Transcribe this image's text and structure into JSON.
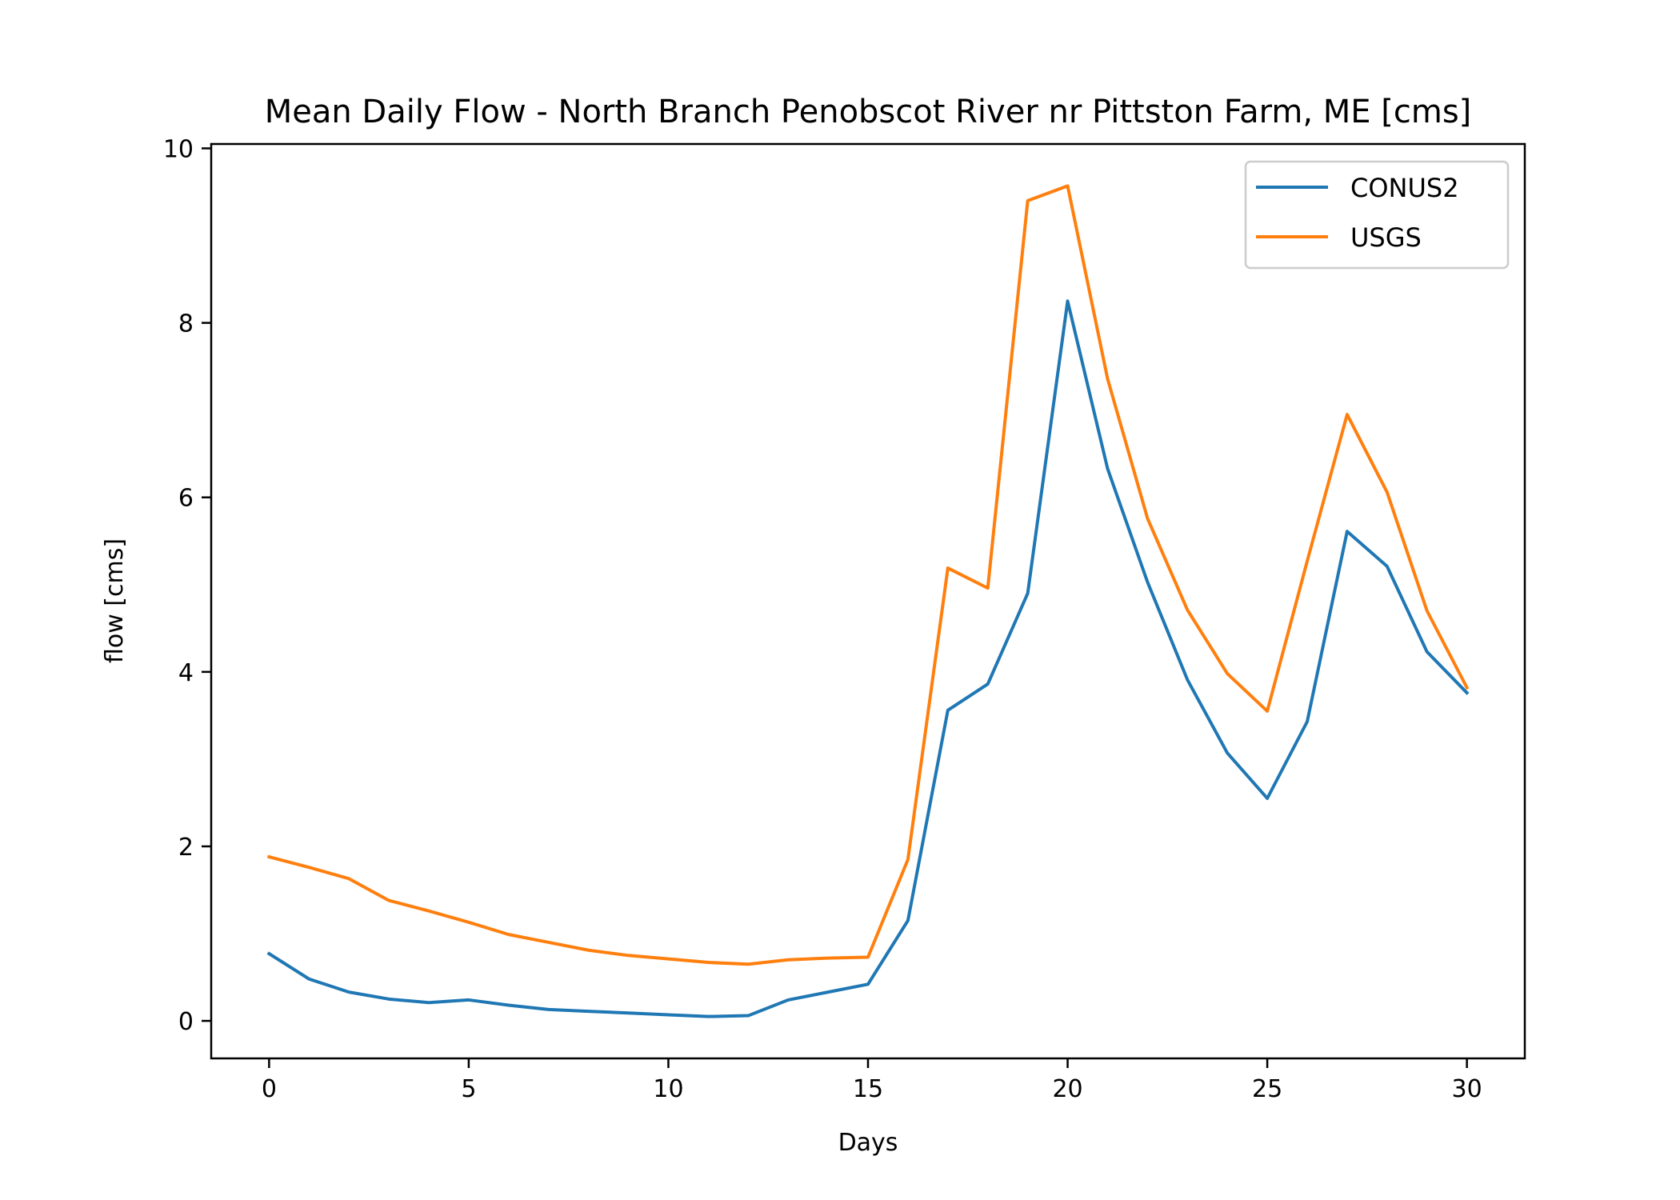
{
  "chart_data": {
    "type": "line",
    "title": "Mean Daily Flow - North Branch Penobscot River nr Pittston Farm, ME [cms]",
    "xlabel": "Days",
    "ylabel": "flow [cms]",
    "xlim": [
      -1.45,
      31.45
    ],
    "ylim": [
      -0.43,
      10.05
    ],
    "xticks": [
      0,
      5,
      10,
      15,
      20,
      25,
      30
    ],
    "xtick_labels": [
      "0",
      "5",
      "10",
      "15",
      "20",
      "25",
      "30"
    ],
    "yticks": [
      0,
      2,
      4,
      6,
      8,
      10
    ],
    "ytick_labels": [
      "0",
      "2",
      "4",
      "6",
      "8",
      "10"
    ],
    "grid": false,
    "legend": {
      "placement": "top-right"
    },
    "x": [
      0,
      1,
      2,
      3,
      4,
      5,
      6,
      7,
      8,
      9,
      10,
      11,
      12,
      13,
      14,
      15,
      16,
      17,
      18,
      19,
      20,
      21,
      22,
      23,
      24,
      25,
      26,
      27,
      28,
      29,
      30
    ],
    "series": [
      {
        "name": "CONUS2",
        "color": "#1f77b4",
        "values": [
          0.77,
          0.48,
          0.33,
          0.25,
          0.21,
          0.24,
          0.18,
          0.13,
          0.11,
          0.09,
          0.07,
          0.05,
          0.06,
          0.24,
          0.33,
          0.42,
          1.15,
          3.56,
          3.86,
          4.9,
          8.25,
          6.33,
          5.03,
          3.91,
          3.07,
          2.55,
          3.43,
          5.61,
          5.21,
          4.23,
          3.76
        ]
      },
      {
        "name": "USGS",
        "color": "#ff7f0e",
        "values": [
          1.88,
          1.76,
          1.63,
          1.38,
          1.26,
          1.13,
          0.99,
          0.9,
          0.81,
          0.75,
          0.71,
          0.67,
          0.65,
          0.7,
          0.72,
          0.73,
          1.85,
          5.19,
          4.96,
          9.4,
          9.57,
          7.36,
          5.76,
          4.71,
          3.98,
          3.55,
          5.27,
          6.95,
          6.06,
          4.7,
          3.82
        ]
      }
    ]
  }
}
